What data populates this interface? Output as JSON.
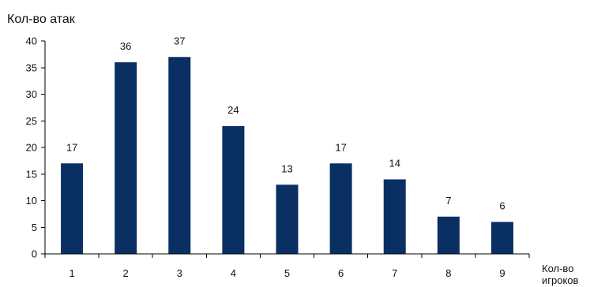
{
  "chart_data": {
    "type": "bar",
    "ylabel": "Кол-во атак",
    "xlabel_lines": [
      "Кол-во",
      "игроков"
    ],
    "categories": [
      "1",
      "2",
      "3",
      "4",
      "5",
      "6",
      "7",
      "8",
      "9"
    ],
    "values": [
      17,
      36,
      37,
      24,
      13,
      17,
      14,
      7,
      6
    ],
    "data_labels": [
      "17",
      "36",
      "37",
      "24",
      "13",
      "17",
      "14",
      "7",
      "6"
    ],
    "ylim": [
      0,
      40
    ],
    "yticks": [
      "0",
      "5",
      "10",
      "15",
      "20",
      "25",
      "30",
      "35",
      "40"
    ],
    "ytick_values": [
      0,
      5,
      10,
      15,
      20,
      25,
      30,
      35,
      40
    ],
    "grid": false,
    "legend": "none",
    "bar_color": "#0a2f63"
  }
}
